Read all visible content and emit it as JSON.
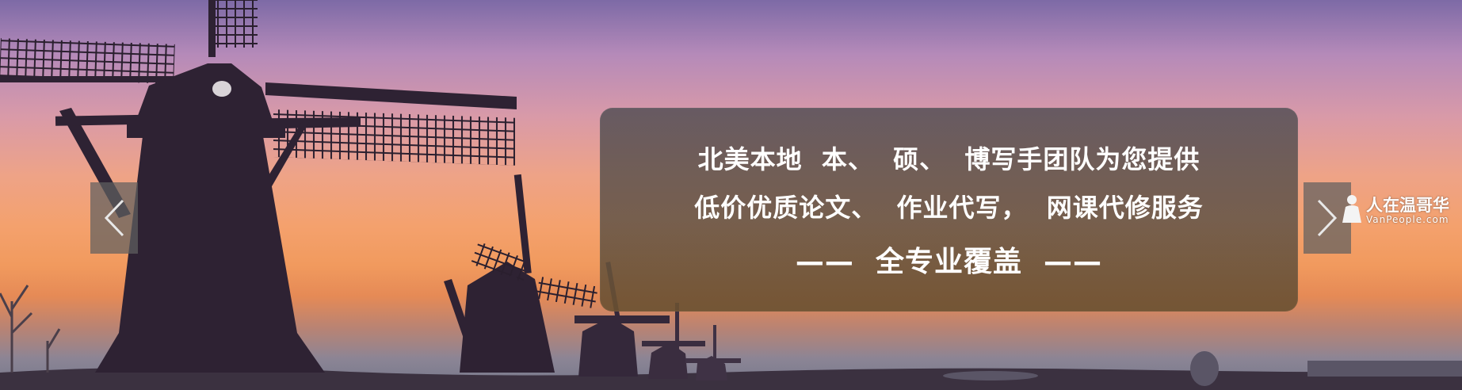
{
  "slide": {
    "line1": "北美本地  本、  硕、  博写手团队为您提供",
    "line2": "低价优质论文、  作业代写，  网课代修服务",
    "line3": "——  全专业覆盖  ——"
  },
  "carousel": {
    "prev_glyph": "‹",
    "next_glyph": "›"
  },
  "watermark": {
    "title": "人在温哥华",
    "site": "VanPeople.com"
  },
  "colors": {
    "sky_top": "#7d6aa6",
    "sky_mid": "#eea387",
    "horizon": "#f19a5e",
    "silhouette": "#2e2233",
    "card": "#5e5450",
    "nav_button": "#5f5f5f"
  },
  "icons": {
    "prev": "chevron-left-icon",
    "next": "chevron-right-icon",
    "watermark": "person-icon"
  }
}
